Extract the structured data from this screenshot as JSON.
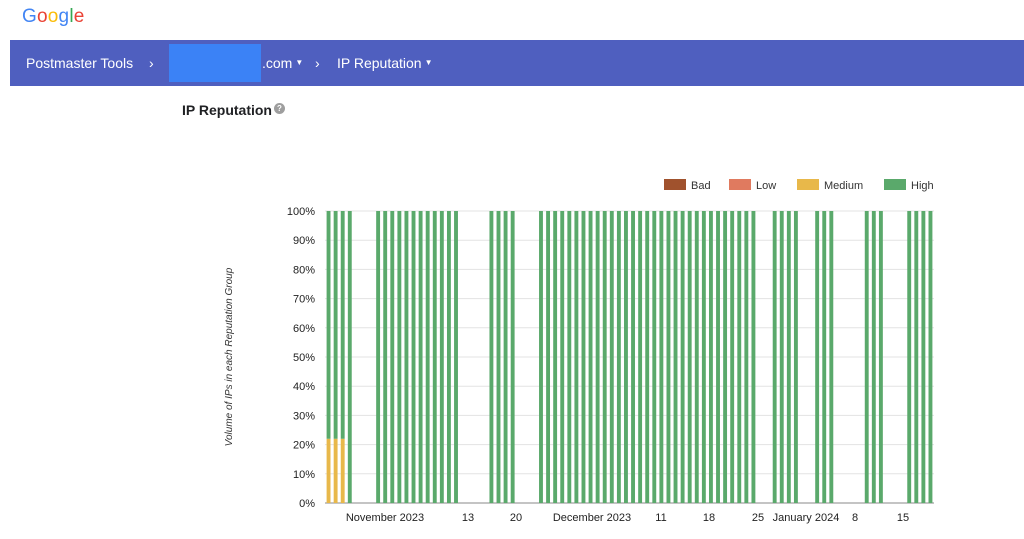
{
  "logo": {
    "letters": [
      "G",
      "o",
      "o",
      "g",
      "l",
      "e"
    ],
    "colors": [
      "#4285F4",
      "#EA4335",
      "#FBBC05",
      "#4285F4",
      "#34A853",
      "#EA4335"
    ]
  },
  "nav": {
    "root": "Postmaster Tools",
    "domain_suffix": ".com",
    "page": "IP Reputation",
    "background": "#4f5fbf",
    "redaction_color": "#3b82f6"
  },
  "section": {
    "title": "IP Reputation",
    "help_icon": "help-icon"
  },
  "chart_data": {
    "type": "bar",
    "stacked": true,
    "ylabel": "Volume of IPs in each Reputation Group",
    "ylim": [
      0,
      100
    ],
    "yticks": [
      "0%",
      "10%",
      "20%",
      "30%",
      "40%",
      "50%",
      "60%",
      "70%",
      "80%",
      "90%",
      "100%"
    ],
    "xtick_labels": [
      "November 2023",
      "13",
      "20",
      "December 2023",
      "11",
      "18",
      "25",
      "January 2024",
      "8",
      "15"
    ],
    "legend": [
      {
        "name": "Bad",
        "color": "#a0522d"
      },
      {
        "name": "Low",
        "color": "#e07a5f"
      },
      {
        "name": "Medium",
        "color": "#e8b84a"
      },
      {
        "name": "High",
        "color": "#5aa96b"
      }
    ],
    "legend_position": "top-right",
    "days": 86,
    "gap_days": [
      4,
      5,
      6,
      19,
      20,
      21,
      22,
      27,
      28,
      29,
      61,
      62,
      67,
      68,
      72,
      73,
      74,
      75,
      79,
      80,
      81
    ],
    "series": [
      {
        "name": "Bad",
        "values": []
      },
      {
        "name": "Low",
        "values": []
      },
      {
        "name": "Medium",
        "values": [
          {
            "days": [
              0,
              1,
              2
            ],
            "value": 22
          }
        ]
      },
      {
        "name": "High",
        "default": 100,
        "overrides": [
          {
            "days": [
              0,
              1,
              2
            ],
            "value": 78
          }
        ]
      }
    ]
  }
}
